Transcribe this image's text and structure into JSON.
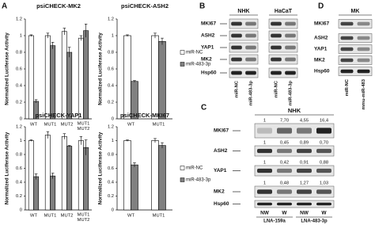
{
  "panel_a": {
    "label": "A"
  },
  "chart_data": [
    {
      "type": "bar",
      "title": "psiCHECK-MK2",
      "y_label": "Normalized Luciferase Activity",
      "categories": [
        "WT",
        "MUT1",
        "MUT2",
        [
          "MUT1",
          "MUT2"
        ]
      ],
      "series": [
        {
          "color": "#ffffff",
          "values": [
            1,
            1,
            1.05,
            0.97
          ],
          "errors": [
            0.01,
            0.03,
            0.04,
            0.03
          ]
        },
        {
          "color": "#808080",
          "values": [
            0.21,
            0.88,
            0.8,
            1.06
          ],
          "errors": [
            0.02,
            0.04,
            0.06,
            0.08
          ]
        }
      ],
      "ylim": [
        0,
        1.2
      ],
      "yticks": [
        0,
        0.2,
        0.4,
        0.6,
        0.8,
        1,
        1.2
      ]
    },
    {
      "type": "bar",
      "title": "psiCHECK-ASH2",
      "y_label": "Normalized Luciferase Activity",
      "categories": [
        "WT",
        "MUT1"
      ],
      "series": [
        {
          "name": "miR-NC",
          "color": "#ffffff",
          "values": [
            1,
            1
          ],
          "errors": [
            0.01,
            0.03
          ]
        },
        {
          "name": "miR-483-3p",
          "color": "#808080",
          "values": [
            0.45,
            0.93
          ],
          "errors": [
            0.01,
            0.04
          ]
        }
      ],
      "ylim": [
        0,
        1.2
      ],
      "yticks": [
        0,
        0.2,
        0.4,
        0.6,
        0.8,
        1,
        1.2
      ],
      "legend": "right"
    },
    {
      "type": "bar",
      "title": "psiCHECK-YAP1",
      "y_label": "Normalized Luciferase Activity",
      "categories": [
        "WT",
        "MUT1",
        "MUT2",
        [
          "MUT1",
          "MUT2"
        ]
      ],
      "series": [
        {
          "color": "#ffffff",
          "values": [
            1,
            1.08,
            1.06,
            1
          ],
          "errors": [
            0.01,
            0.05,
            0.04,
            0.06
          ]
        },
        {
          "color": "#808080",
          "values": [
            0.48,
            0.49,
            0.92,
            0.9
          ],
          "errors": [
            0.04,
            0.04,
            0.01,
            0.11
          ]
        }
      ],
      "ylim": [
        0,
        1.2
      ],
      "yticks": [
        0,
        0.2,
        0.4,
        0.6,
        0.8,
        1,
        1.2
      ]
    },
    {
      "type": "bar",
      "title": "psiCHECK-MKI67",
      "y_label": "Normalized Luciferase Activity",
      "categories": [
        "WT",
        "MUT1"
      ],
      "series": [
        {
          "name": "miR-NC",
          "color": "#ffffff",
          "values": [
            1,
            1
          ],
          "errors": [
            0.01,
            0.03
          ]
        },
        {
          "name": "miR-483-3p",
          "color": "#808080",
          "values": [
            0.65,
            0.93
          ],
          "errors": [
            0.03,
            0.04
          ]
        }
      ],
      "ylim": [
        0,
        1.2
      ],
      "yticks": [
        0,
        0.2,
        0.4,
        0.6,
        0.8,
        1,
        1.2
      ],
      "legend": "right"
    }
  ],
  "blot_b": {
    "label": "B",
    "groups": [
      {
        "name": "NHK",
        "lanes": [
          "miR-NC",
          "miR-483-3p"
        ]
      },
      {
        "name": "HaCaT",
        "lanes": [
          "miR-NC",
          "miR-483-3p"
        ]
      }
    ],
    "rows": [
      "MKI67",
      "ASH2",
      "YAP1",
      "MK2",
      "Hsp60"
    ]
  },
  "blot_c": {
    "label": "C",
    "header": "NHK",
    "rows": [
      {
        "name": "MKI67",
        "quant": [
          "1",
          "7,70",
          "4,55",
          "16,4"
        ]
      },
      {
        "name": "ASH2",
        "quant": [
          "1",
          "0,45",
          "0,89",
          "0,70"
        ]
      },
      {
        "name": "YAP1",
        "quant": [
          "1",
          "0,42",
          "0,91",
          "0,88"
        ]
      },
      {
        "name": "MK2",
        "quant": [
          "1",
          "0,48",
          "1,27",
          "1,03"
        ]
      },
      {
        "name": "Hsp60"
      }
    ],
    "lanes": [
      "NW",
      "W",
      "NW",
      "W"
    ],
    "groups": [
      "LNA-159a",
      "LNA-483-3p"
    ]
  },
  "blot_d": {
    "label": "D",
    "header": "MK",
    "rows": [
      "MKI67",
      "ASH2",
      "YAP1",
      "MK2",
      "Hsp60"
    ],
    "lanes": [
      "miR-NC",
      "mmu-miR-483"
    ]
  }
}
